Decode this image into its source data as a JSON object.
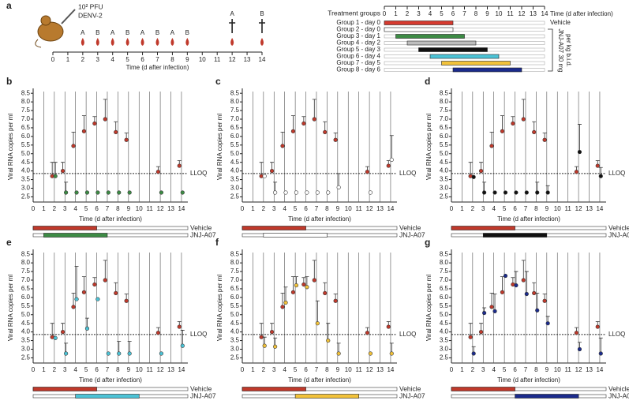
{
  "panel_a": {
    "panel": "a",
    "inoculum": "10² PFU",
    "virus": "DENV-2",
    "xlabel": "Time (d after infection)",
    "xlim": [
      0,
      14
    ],
    "xticks": [
      0,
      1,
      2,
      3,
      4,
      5,
      6,
      7,
      8,
      9,
      10,
      11,
      12,
      13,
      14
    ],
    "samples": [
      {
        "day": 2,
        "label": "A"
      },
      {
        "day": 3,
        "label": "B"
      },
      {
        "day": 4,
        "label": "A"
      },
      {
        "day": 5,
        "label": "B"
      },
      {
        "day": 6,
        "label": "A"
      },
      {
        "day": 7,
        "label": "B"
      },
      {
        "day": 8,
        "label": "A"
      },
      {
        "day": 9,
        "label": "B"
      },
      {
        "day": 12,
        "label": "A",
        "terminal": true
      },
      {
        "day": 14,
        "label": "B",
        "terminal": true
      }
    ],
    "groups_title": "Treatment groups",
    "groups_xlabel": "Time (d after infection)",
    "vehicle_label": "Vehicle",
    "drug_label": [
      "JNJ-A07 30 mg",
      "per kg b.i.d."
    ],
    "groups": [
      {
        "label": "Group 1 - day 0",
        "color": "#d63a2f",
        "start": 0,
        "end": 6
      },
      {
        "label": "Group 2 - day 0",
        "color": "#ffffff",
        "start": 0,
        "end": 6
      },
      {
        "label": "Group 3 - day 1",
        "color": "#3d8b45",
        "start": 1,
        "end": 7
      },
      {
        "label": "Group 4 - day 2",
        "color": "#bdbdbd",
        "start": 2,
        "end": 8
      },
      {
        "label": "Group 5 - day 3",
        "color": "#111111",
        "start": 3,
        "end": 9
      },
      {
        "label": "Group 6 - day 4",
        "color": "#4cc3d6",
        "start": 4,
        "end": 10
      },
      {
        "label": "Group 7 - day 5",
        "color": "#f2c23a",
        "start": 5,
        "end": 11
      },
      {
        "label": "Group 8 - day 6",
        "color": "#1b2b8c",
        "start": 6,
        "end": 12
      }
    ]
  },
  "chart_data": [
    {
      "type": "scatter",
      "panel": "b",
      "ylabel": "Viral RNA copies per ml",
      "xlabel": "Time (d after infection)",
      "xlim": [
        0,
        14.6
      ],
      "xticks": [
        0,
        1,
        2,
        3,
        4,
        5,
        6,
        7,
        8,
        9,
        10,
        11,
        12,
        13,
        14
      ],
      "xgrid": true,
      "ylim": [
        2.2,
        8.6
      ],
      "yticks": [
        2.5,
        {
          "value": 3,
          "label": "3.0"
        },
        3.5,
        {
          "value": 4,
          "label": "4.0"
        },
        4.5,
        {
          "value": 5,
          "label": "5.0"
        },
        5.5,
        {
          "value": 6,
          "label": "6.0"
        },
        6.5,
        {
          "value": 7,
          "label": "7.0"
        },
        7.5,
        {
          "value": 8,
          "label": "8.0"
        },
        8.5
      ],
      "lloq": {
        "value": 3.85,
        "label": "LLOQ"
      },
      "series": [
        {
          "name": "Vehicle",
          "color": "#c0392b",
          "treatment": [
            0,
            6
          ],
          "x": [
            1.8,
            2.8,
            3.8,
            4.8,
            5.8,
            6.8,
            7.8,
            8.8,
            11.8,
            13.8
          ],
          "values": [
            3.7,
            4.0,
            5.45,
            6.3,
            6.75,
            7.0,
            6.25,
            5.8,
            3.95,
            4.3
          ],
          "errors": [
            0.8,
            0.5,
            0.8,
            0.9,
            0.4,
            1.15,
            0.6,
            0.4,
            0.3,
            0.3
          ]
        },
        {
          "name": "JNJ-A07",
          "color": "#3d8b45",
          "treatment": [
            1,
            7
          ],
          "x": [
            2.1,
            3.1,
            4.1,
            5.1,
            6.1,
            7.1,
            8.1,
            9.1,
            12.1,
            14.1
          ],
          "values": [
            3.7,
            2.75,
            2.75,
            2.75,
            2.75,
            2.75,
            2.75,
            2.75,
            2.75,
            2.75
          ],
          "errors": [
            0.8,
            0.6,
            0,
            0,
            0,
            0,
            0,
            0,
            0,
            0
          ]
        }
      ]
    },
    {
      "type": "scatter",
      "panel": "c",
      "ylabel": "Viral RNA copies per ml",
      "xlabel": "Time (d after infection)",
      "xlim": [
        0,
        14.6
      ],
      "xticks": [
        0,
        1,
        2,
        3,
        4,
        5,
        6,
        7,
        8,
        9,
        10,
        11,
        12,
        13,
        14
      ],
      "xgrid": true,
      "ylim": [
        2.2,
        8.6
      ],
      "yticks": [
        2.5,
        {
          "value": 3,
          "label": "3.0"
        },
        3.5,
        {
          "value": 4,
          "label": "4.0"
        },
        4.5,
        {
          "value": 5,
          "label": "5.0"
        },
        5.5,
        {
          "value": 6,
          "label": "6.0"
        },
        6.5,
        {
          "value": 7,
          "label": "7.0"
        },
        7.5,
        {
          "value": 8,
          "label": "8.0"
        },
        8.5
      ],
      "lloq": {
        "value": 3.85,
        "label": "LLOQ"
      },
      "series": [
        {
          "name": "Vehicle",
          "color": "#c0392b",
          "treatment": [
            0,
            6
          ],
          "x": [
            1.8,
            2.8,
            3.8,
            4.8,
            5.8,
            6.8,
            7.8,
            8.8,
            11.8,
            13.8
          ],
          "values": [
            3.7,
            4.0,
            5.45,
            6.3,
            6.75,
            7.0,
            6.25,
            5.8,
            3.95,
            4.3
          ],
          "errors": [
            0.8,
            0.5,
            0.8,
            0.9,
            0.4,
            1.15,
            0.6,
            0.4,
            0.3,
            0.3
          ]
        },
        {
          "name": "JNJ-A07",
          "color": "#ffffff",
          "treatment": [
            2,
            8
          ],
          "x": [
            2.1,
            3.1,
            4.1,
            5.1,
            6.1,
            7.1,
            8.1,
            9.1,
            12.1,
            14.1
          ],
          "values": [
            3.7,
            2.75,
            2.75,
            2.75,
            2.75,
            2.75,
            2.75,
            3.05,
            2.75,
            4.65
          ],
          "errors": [
            0,
            0.6,
            0,
            0,
            0,
            0,
            0,
            0.8,
            0,
            1.4
          ]
        }
      ]
    },
    {
      "type": "scatter",
      "panel": "d",
      "ylabel": "Viral RNA copies per ml",
      "xlabel": "Time (d after infection)",
      "xlim": [
        0,
        14.6
      ],
      "xticks": [
        0,
        1,
        2,
        3,
        4,
        5,
        6,
        7,
        8,
        9,
        10,
        11,
        12,
        13,
        14
      ],
      "xgrid": true,
      "ylim": [
        2.2,
        8.6
      ],
      "yticks": [
        2.5,
        {
          "value": 3,
          "label": "3.0"
        },
        3.5,
        {
          "value": 4,
          "label": "4.0"
        },
        4.5,
        {
          "value": 5,
          "label": "5.0"
        },
        5.5,
        {
          "value": 6,
          "label": "6.0"
        },
        6.5,
        {
          "value": 7,
          "label": "7.0"
        },
        7.5,
        {
          "value": 8,
          "label": "8.0"
        },
        8.5
      ],
      "lloq": {
        "value": 3.85,
        "label": "LLOQ"
      },
      "series": [
        {
          "name": "Vehicle",
          "color": "#c0392b",
          "treatment": [
            0,
            6
          ],
          "x": [
            1.8,
            2.8,
            3.8,
            4.8,
            5.8,
            6.8,
            7.8,
            8.8,
            11.8,
            13.8
          ],
          "values": [
            3.7,
            4.0,
            5.45,
            6.3,
            6.75,
            7.0,
            6.25,
            5.8,
            3.95,
            4.3
          ],
          "errors": [
            0.8,
            0.5,
            0.8,
            0.9,
            0.4,
            1.15,
            0.6,
            0.4,
            0.3,
            0.3
          ]
        },
        {
          "name": "JNJ-A07",
          "color": "#111111",
          "treatment": [
            3,
            9
          ],
          "x": [
            2.1,
            3.1,
            4.1,
            5.1,
            6.1,
            7.1,
            8.1,
            9.1,
            12.1,
            14.1
          ],
          "values": [
            3.65,
            2.75,
            2.75,
            2.75,
            2.75,
            2.75,
            2.75,
            2.75,
            5.1,
            3.7
          ],
          "errors": [
            0,
            0.6,
            0,
            0,
            0,
            0,
            0.6,
            0.4,
            1.6,
            0.5
          ]
        }
      ]
    },
    {
      "type": "scatter",
      "panel": "e",
      "ylabel": "Viral RNA copies per ml",
      "xlabel": "Time (d after infection)",
      "xlim": [
        0,
        14.6
      ],
      "xticks": [
        0,
        1,
        2,
        3,
        4,
        5,
        6,
        7,
        8,
        9,
        10,
        11,
        12,
        13,
        14
      ],
      "xgrid": true,
      "ylim": [
        2.2,
        8.6
      ],
      "yticks": [
        2.5,
        {
          "value": 3,
          "label": "3.0"
        },
        3.5,
        {
          "value": 4,
          "label": "4.0"
        },
        4.5,
        {
          "value": 5,
          "label": "5.0"
        },
        5.5,
        {
          "value": 6,
          "label": "6.0"
        },
        6.5,
        {
          "value": 7,
          "label": "7.0"
        },
        7.5,
        {
          "value": 8,
          "label": "8.0"
        },
        8.5
      ],
      "lloq": {
        "value": 3.85,
        "label": "LLOQ"
      },
      "series": [
        {
          "name": "Vehicle",
          "color": "#c0392b",
          "treatment": [
            0,
            6
          ],
          "x": [
            1.8,
            2.8,
            3.8,
            4.8,
            5.8,
            6.8,
            7.8,
            8.8,
            11.8,
            13.8
          ],
          "values": [
            3.7,
            4.0,
            5.45,
            6.3,
            6.75,
            7.0,
            6.25,
            5.8,
            3.95,
            4.3
          ],
          "errors": [
            0.8,
            0.5,
            0.8,
            0.9,
            0.4,
            1.15,
            0.6,
            0.4,
            0.3,
            0.3
          ]
        },
        {
          "name": "JNJ-A07",
          "color": "#4cc3d6",
          "treatment": [
            4,
            10
          ],
          "x": [
            2.1,
            3.1,
            4.1,
            5.1,
            6.1,
            7.1,
            8.1,
            9.1,
            12.1,
            14.1
          ],
          "values": [
            3.65,
            2.75,
            5.9,
            4.2,
            5.9,
            2.75,
            2.75,
            2.75,
            2.75,
            3.2
          ],
          "errors": [
            0,
            0.6,
            1.9,
            0.6,
            0,
            0,
            0.7,
            0.7,
            0,
            0.9
          ]
        }
      ]
    },
    {
      "type": "scatter",
      "panel": "f",
      "ylabel": "Viral RNA copies per ml",
      "xlabel": "Time (d after infection)",
      "xlim": [
        0,
        14.6
      ],
      "xticks": [
        0,
        1,
        2,
        3,
        4,
        5,
        6,
        7,
        8,
        9,
        10,
        11,
        12,
        13,
        14
      ],
      "xgrid": true,
      "ylim": [
        2.2,
        8.6
      ],
      "yticks": [
        2.5,
        {
          "value": 3,
          "label": "3.0"
        },
        3.5,
        {
          "value": 4,
          "label": "4.0"
        },
        4.5,
        {
          "value": 5,
          "label": "5.0"
        },
        5.5,
        {
          "value": 6,
          "label": "6.0"
        },
        6.5,
        {
          "value": 7,
          "label": "7.0"
        },
        7.5,
        {
          "value": 8,
          "label": "8.0"
        },
        8.5
      ],
      "lloq": {
        "value": 3.85,
        "label": "LLOQ"
      },
      "series": [
        {
          "name": "Vehicle",
          "color": "#c0392b",
          "treatment": [
            0,
            6
          ],
          "x": [
            1.8,
            2.8,
            3.8,
            4.8,
            5.8,
            6.8,
            7.8,
            8.8,
            11.8,
            13.8
          ],
          "values": [
            3.7,
            4.0,
            5.45,
            6.3,
            6.75,
            7.0,
            6.25,
            5.8,
            3.95,
            4.3
          ],
          "errors": [
            0.8,
            0.5,
            0.8,
            0.9,
            0.4,
            1.15,
            0.6,
            0.4,
            0.3,
            0.3
          ]
        },
        {
          "name": "JNJ-A07",
          "color": "#f2c23a",
          "treatment": [
            5,
            11
          ],
          "x": [
            2.1,
            3.1,
            4.1,
            5.1,
            6.1,
            7.1,
            8.1,
            9.1,
            12.1,
            14.1
          ],
          "values": [
            3.2,
            3.15,
            5.7,
            6.7,
            6.6,
            4.5,
            3.5,
            2.75,
            2.75,
            2.75
          ],
          "errors": [
            0.5,
            0.5,
            0.9,
            0.5,
            0.6,
            1.3,
            1.0,
            0.6,
            0,
            0.6
          ]
        }
      ]
    },
    {
      "type": "scatter",
      "panel": "g",
      "ylabel": "Viral RNA copies per ml",
      "xlabel": "Time (d after infection)",
      "xlim": [
        0,
        14.6
      ],
      "xticks": [
        0,
        1,
        2,
        3,
        4,
        5,
        6,
        7,
        8,
        9,
        10,
        11,
        12,
        13,
        14
      ],
      "xgrid": true,
      "ylim": [
        2.2,
        8.6
      ],
      "yticks": [
        2.5,
        {
          "value": 3,
          "label": "3.0"
        },
        3.5,
        {
          "value": 4,
          "label": "4.0"
        },
        4.5,
        {
          "value": 5,
          "label": "5.0"
        },
        5.5,
        {
          "value": 6,
          "label": "6.0"
        },
        6.5,
        {
          "value": 7,
          "label": "7.0"
        },
        7.5,
        {
          "value": 8,
          "label": "8.0"
        },
        8.5
      ],
      "lloq": {
        "value": 3.85,
        "label": "LLOQ"
      },
      "series": [
        {
          "name": "Vehicle",
          "color": "#c0392b",
          "treatment": [
            0,
            6
          ],
          "x": [
            1.8,
            2.8,
            3.8,
            4.8,
            5.8,
            6.8,
            7.8,
            8.8,
            11.8,
            13.8
          ],
          "values": [
            3.7,
            4.0,
            5.45,
            6.3,
            6.75,
            7.0,
            6.25,
            5.8,
            3.95,
            4.3
          ],
          "errors": [
            0.8,
            0.5,
            0.8,
            0.9,
            0.4,
            1.15,
            0.6,
            0.4,
            0.3,
            0.3
          ]
        },
        {
          "name": "JNJ-A07",
          "color": "#1b2b8c",
          "treatment": [
            6,
            12
          ],
          "x": [
            2.1,
            3.1,
            4.1,
            5.1,
            6.1,
            7.1,
            8.1,
            9.1,
            12.1,
            14.1
          ],
          "values": [
            2.75,
            5.1,
            5.2,
            7.25,
            6.7,
            6.2,
            5.25,
            4.5,
            3.0,
            2.75
          ],
          "errors": [
            0.4,
            0.3,
            1.0,
            0,
            0.8,
            1.3,
            1.0,
            0.4,
            0.4,
            0.9
          ]
        }
      ]
    }
  ]
}
